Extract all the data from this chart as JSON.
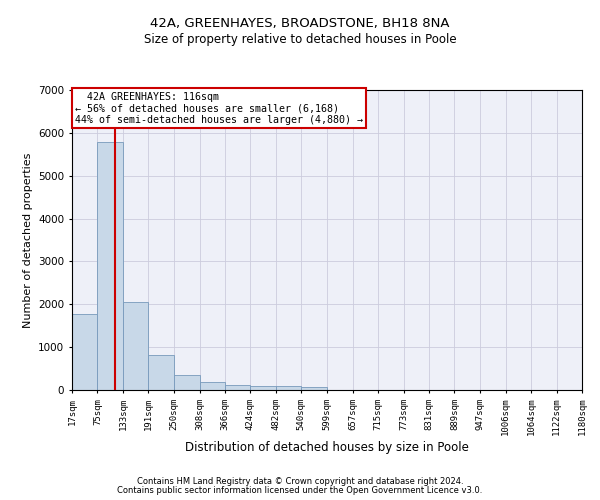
{
  "title1": "42A, GREENHAYES, BROADSTONE, BH18 8NA",
  "title2": "Size of property relative to detached houses in Poole",
  "xlabel": "Distribution of detached houses by size in Poole",
  "ylabel": "Number of detached properties",
  "footnote1": "Contains HM Land Registry data © Crown copyright and database right 2024.",
  "footnote2": "Contains public sector information licensed under the Open Government Licence v3.0.",
  "bar_color": "#c8d8e8",
  "bar_edge_color": "#7799bb",
  "grid_color": "#ccccdd",
  "background_color": "#eef0f8",
  "subject_size": 116,
  "subject_label": "42A GREENHAYES: 116sqm",
  "smaller_pct": 56,
  "smaller_n": 6168,
  "larger_pct": 44,
  "larger_n": 4880,
  "annotation_box_color": "#cc0000",
  "vline_color": "#cc0000",
  "bin_edges": [
    17,
    75,
    133,
    191,
    250,
    308,
    366,
    424,
    482,
    540,
    599,
    657,
    715,
    773,
    831,
    889,
    947,
    1006,
    1064,
    1122,
    1180
  ],
  "bar_heights": [
    1780,
    5780,
    2060,
    820,
    340,
    185,
    115,
    105,
    95,
    65,
    0,
    0,
    0,
    0,
    0,
    0,
    0,
    0,
    0,
    0
  ],
  "ylim": [
    0,
    7000
  ],
  "yticks": [
    0,
    1000,
    2000,
    3000,
    4000,
    5000,
    6000,
    7000
  ]
}
